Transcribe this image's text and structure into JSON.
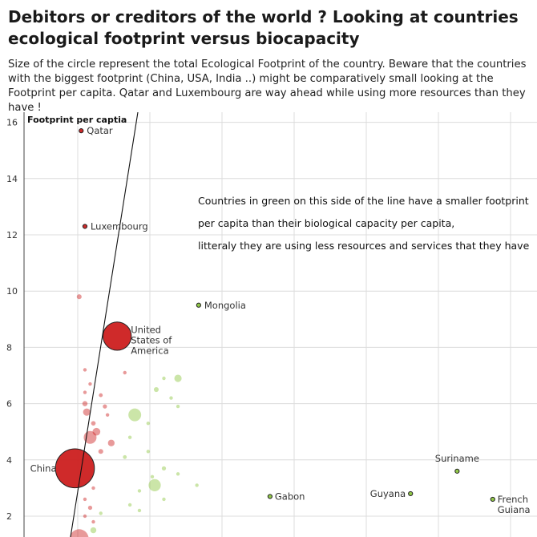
{
  "title": "Debitors or creditors of the world ? Looking at countries ecological footprint versus biocapacity",
  "subtitle": "Size of the circle represent the total Ecological Footprint of the country. Beware that the countries with the biggest footprint (China, USA, India ..) might be comparatively small looking at the Footprint per capita. Qatar and Luxembourg are way ahead while using more resources than they have !",
  "chart_data": {
    "type": "scatter",
    "ylabel": "Footprint per captia",
    "xlabel": "",
    "ylim": [
      1,
      16.3
    ],
    "xlim": [
      0,
      130
    ],
    "y_ticks": [
      2,
      4,
      6,
      8,
      10,
      12,
      14,
      16
    ],
    "grid": true,
    "colors": {
      "debtor": "#cc1f1f",
      "creditor": "#8cc63f"
    },
    "reference_line": {
      "description": "footprint = biocapacity",
      "points": [
        [
          0,
          0
        ],
        [
          16.3,
          16.3
        ]
      ]
    },
    "annotation": [
      "Countries in green on this side of the line have a smaller footprint",
      "per capita than their biological capacity per capita,",
      "litteraly they are using less resources and services that they have"
    ],
    "labeled_points": [
      {
        "name": "Qatar",
        "x": 1.3,
        "y": 15.7,
        "group": "debtor",
        "total": 40
      },
      {
        "name": "Luxembourg",
        "x": 1.5,
        "y": 12.3,
        "group": "debtor",
        "total": 8
      },
      {
        "name": "Mongolia",
        "x": 14.3,
        "y": 9.5,
        "group": "creditor",
        "total": 20
      },
      {
        "name": "United States of America",
        "x": 3.8,
        "y": 8.4,
        "group": "debtor",
        "total": 2700
      },
      {
        "name": "China",
        "x": 1.0,
        "y": 3.7,
        "group": "debtor",
        "total": 5100
      },
      {
        "name": "Suriname",
        "x": 92,
        "y": 3.6,
        "group": "creditor",
        "total": 3
      },
      {
        "name": "Gabon",
        "x": 29,
        "y": 2.7,
        "group": "creditor",
        "total": 4
      },
      {
        "name": "Guyana",
        "x": 73,
        "y": 2.8,
        "group": "creditor",
        "total": 3
      },
      {
        "name": "French Guiana",
        "x": 108,
        "y": 2.6,
        "group": "creditor",
        "total": 2
      }
    ],
    "points": [
      {
        "x": 1.2,
        "y": 9.8,
        "group": "debtor",
        "total": 80
      },
      {
        "x": 1.5,
        "y": 7.2,
        "group": "debtor",
        "total": 40
      },
      {
        "x": 4.5,
        "y": 7.1,
        "group": "debtor",
        "total": 20
      },
      {
        "x": 1.8,
        "y": 6.7,
        "group": "debtor",
        "total": 30
      },
      {
        "x": 1.5,
        "y": 6.4,
        "group": "debtor",
        "total": 40
      },
      {
        "x": 2.5,
        "y": 6.3,
        "group": "debtor",
        "total": 50
      },
      {
        "x": 1.5,
        "y": 6.0,
        "group": "debtor",
        "total": 90
      },
      {
        "x": 2.8,
        "y": 5.9,
        "group": "debtor",
        "total": 60
      },
      {
        "x": 1.6,
        "y": 5.7,
        "group": "debtor",
        "total": 180
      },
      {
        "x": 3.0,
        "y": 5.6,
        "group": "debtor",
        "total": 40
      },
      {
        "x": 2.0,
        "y": 5.3,
        "group": "debtor",
        "total": 70
      },
      {
        "x": 2.2,
        "y": 5.0,
        "group": "debtor",
        "total": 200
      },
      {
        "x": 1.8,
        "y": 4.8,
        "group": "debtor",
        "total": 550
      },
      {
        "x": 3.3,
        "y": 4.6,
        "group": "debtor",
        "total": 150
      },
      {
        "x": 2.5,
        "y": 4.3,
        "group": "debtor",
        "total": 80
      },
      {
        "x": 2.0,
        "y": 3.0,
        "group": "debtor",
        "total": 40
      },
      {
        "x": 1.5,
        "y": 2.6,
        "group": "debtor",
        "total": 30
      },
      {
        "x": 1.8,
        "y": 2.3,
        "group": "debtor",
        "total": 60
      },
      {
        "x": 1.5,
        "y": 2.0,
        "group": "debtor",
        "total": 40
      },
      {
        "x": 2.0,
        "y": 1.8,
        "group": "debtor",
        "total": 30
      },
      {
        "x": 1.2,
        "y": 1.2,
        "group": "debtor",
        "total": 1200
      },
      {
        "x": 9,
        "y": 6.9,
        "group": "creditor",
        "total": 10
      },
      {
        "x": 11,
        "y": 6.9,
        "group": "creditor",
        "total": 180
      },
      {
        "x": 8,
        "y": 6.5,
        "group": "creditor",
        "total": 80
      },
      {
        "x": 10,
        "y": 6.2,
        "group": "creditor",
        "total": 40
      },
      {
        "x": 11,
        "y": 5.9,
        "group": "creditor",
        "total": 30
      },
      {
        "x": 5.5,
        "y": 5.6,
        "group": "creditor",
        "total": 550
      },
      {
        "x": 7,
        "y": 5.3,
        "group": "creditor",
        "total": 30
      },
      {
        "x": 5,
        "y": 4.8,
        "group": "creditor",
        "total": 40
      },
      {
        "x": 4.5,
        "y": 4.1,
        "group": "creditor",
        "total": 50
      },
      {
        "x": 7,
        "y": 4.3,
        "group": "creditor",
        "total": 30
      },
      {
        "x": 9,
        "y": 3.7,
        "group": "creditor",
        "total": 60
      },
      {
        "x": 11,
        "y": 3.5,
        "group": "creditor",
        "total": 30
      },
      {
        "x": 7.5,
        "y": 3.4,
        "group": "creditor",
        "total": 20
      },
      {
        "x": 7.8,
        "y": 3.1,
        "group": "creditor",
        "total": 500
      },
      {
        "x": 14,
        "y": 3.1,
        "group": "creditor",
        "total": 20
      },
      {
        "x": 6,
        "y": 2.9,
        "group": "creditor",
        "total": 20
      },
      {
        "x": 9,
        "y": 2.6,
        "group": "creditor",
        "total": 30
      },
      {
        "x": 5,
        "y": 2.4,
        "group": "creditor",
        "total": 40
      },
      {
        "x": 2.5,
        "y": 2.1,
        "group": "creditor",
        "total": 30
      },
      {
        "x": 6,
        "y": 2.2,
        "group": "creditor",
        "total": 20
      },
      {
        "x": 2.0,
        "y": 1.5,
        "group": "creditor",
        "total": 120
      }
    ]
  }
}
